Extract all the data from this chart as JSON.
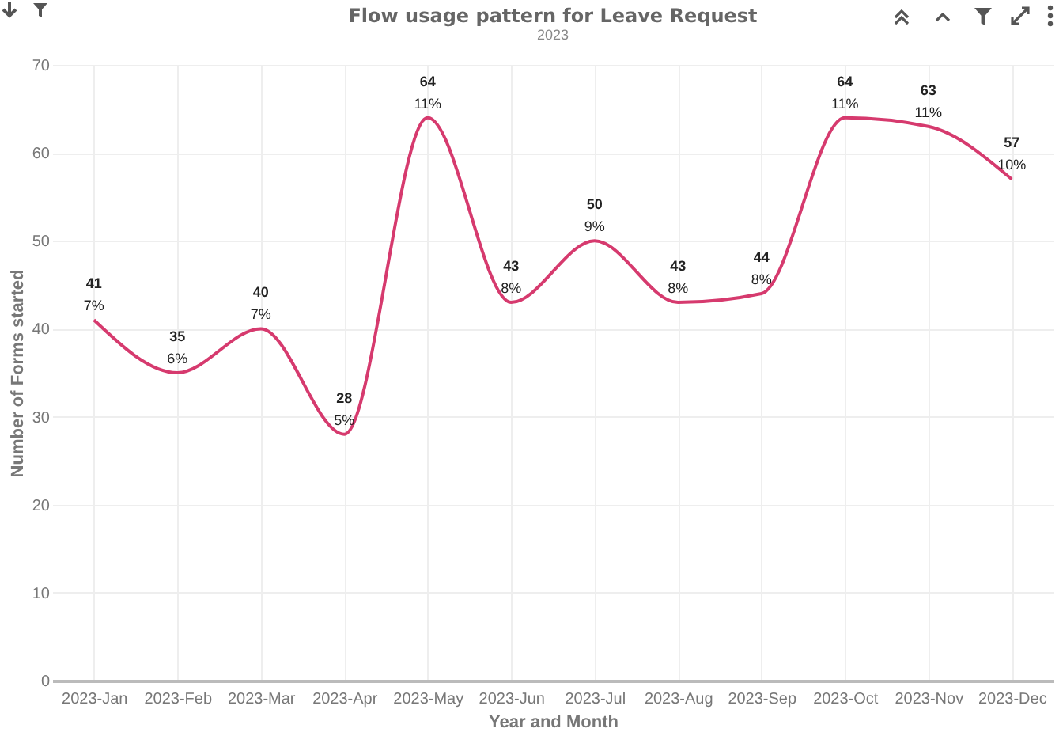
{
  "chart_data": {
    "type": "line",
    "title": "Flow usage pattern for Leave Request",
    "subtitle": "2023",
    "xlabel": "Year and Month",
    "ylabel": "Number of Forms started",
    "categories": [
      "2023-Jan",
      "2023-Feb",
      "2023-Mar",
      "2023-Apr",
      "2023-May",
      "2023-Jun",
      "2023-Jul",
      "2023-Aug",
      "2023-Sep",
      "2023-Oct",
      "2023-Nov",
      "2023-Dec"
    ],
    "series": [
      {
        "color": "#d63a6e",
        "values": [
          41,
          35,
          40,
          28,
          64,
          43,
          50,
          43,
          44,
          64,
          63,
          57
        ]
      }
    ],
    "ylim": [
      0,
      70
    ],
    "yticks": [
      0,
      10,
      20,
      30,
      40,
      50,
      60,
      70
    ],
    "grid": true,
    "data_labels": true,
    "marker": "none",
    "line_style": "solid",
    "annotations": [
      {
        "text": "7%",
        "x": "2023-Jan",
        "y": 41
      },
      {
        "text": "6%",
        "x": "2023-Feb",
        "y": 35
      },
      {
        "text": "7%",
        "x": "2023-Mar",
        "y": 40
      },
      {
        "text": "5%",
        "x": "2023-Apr",
        "y": 28
      },
      {
        "text": "11%",
        "x": "2023-May",
        "y": 64
      },
      {
        "text": "8%",
        "x": "2023-Jun",
        "y": 43
      },
      {
        "text": "9%",
        "x": "2023-Jul",
        "y": 50
      },
      {
        "text": "8%",
        "x": "2023-Aug",
        "y": 43
      },
      {
        "text": "8%",
        "x": "2023-Sep",
        "y": 44
      },
      {
        "text": "11%",
        "x": "2023-Oct",
        "y": 64
      },
      {
        "text": "11%",
        "x": "2023-Nov",
        "y": 63
      },
      {
        "text": "10%",
        "x": "2023-Dec",
        "y": 57
      }
    ]
  }
}
